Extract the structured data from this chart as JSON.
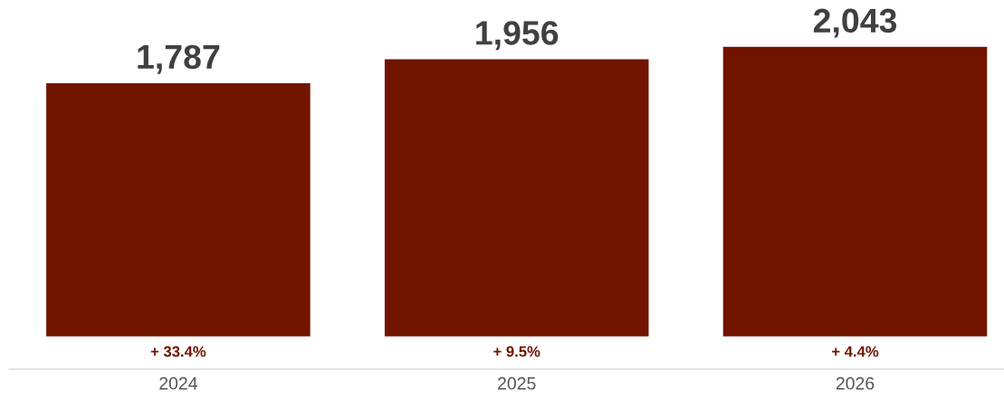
{
  "chart_data": {
    "type": "bar",
    "categories": [
      "2024",
      "2025",
      "2026"
    ],
    "values": [
      1787,
      1956,
      2043
    ],
    "value_labels": [
      "1,787",
      "1,956",
      "2,043"
    ],
    "color": "#701400",
    "annotations": [
      "+ 33.4%",
      "+ 9.5%",
      "+ 4.4%"
    ]
  }
}
